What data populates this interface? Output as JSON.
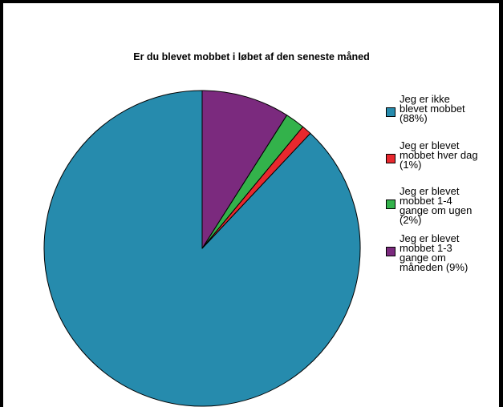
{
  "chart_data": {
    "type": "pie",
    "title": "Er du blevet mobbet i løbet af den seneste måned",
    "legend_position": "right",
    "slices": [
      {
        "label": "Jeg er ikke blevet mobbet (88%)",
        "legend_text": "Jeg er ikke\nblevet mobbet\n(88%)",
        "value": 88,
        "color": "#268bad"
      },
      {
        "label": "Jeg er blevet mobbet hver dag (1%)",
        "legend_text": "Jeg er blevet\nmobbet hver dag\n(1%)",
        "value": 1,
        "color": "#e8282e"
      },
      {
        "label": "Jeg er blevet mobbet 1-4 gange om ugen (2%)",
        "legend_text": "Jeg er blevet\nmobbet 1-4\ngange om ugen\n(2%)",
        "value": 2,
        "color": "#33b24b"
      },
      {
        "label": "Jeg er blevet mobbet 1-3 gange om måneden (9%)",
        "legend_text": "Jeg er blevet\nmobbet 1-3\ngange om\nmåneden (9%)",
        "value": 9,
        "color": "#7b2a7e"
      }
    ]
  }
}
